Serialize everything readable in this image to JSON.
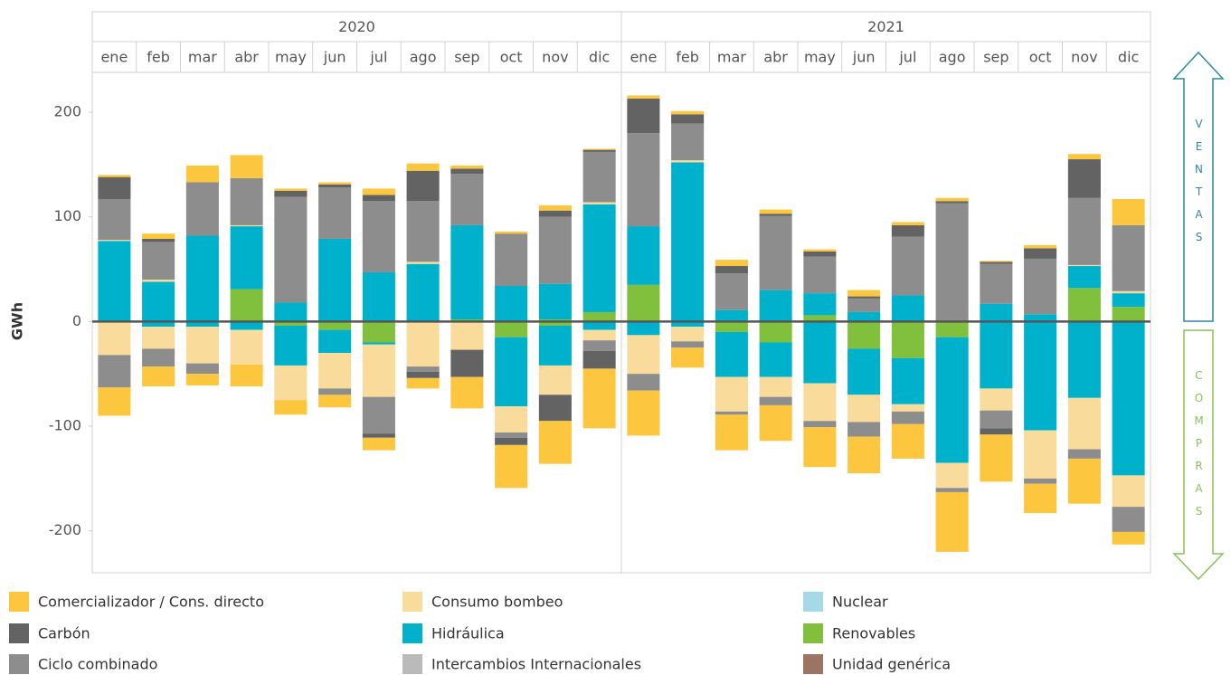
{
  "chart_data": {
    "type": "bar",
    "y_label": "GWh",
    "groups": [
      "2020",
      "2021"
    ],
    "categories": [
      "ene",
      "feb",
      "mar",
      "abr",
      "may",
      "jun",
      "jul",
      "ago",
      "sep",
      "oct",
      "nov",
      "dic",
      "ene",
      "feb",
      "mar",
      "abr",
      "may",
      "jun",
      "jul",
      "ago",
      "sep",
      "oct",
      "nov",
      "dic"
    ],
    "annotations": {
      "ventas": "VENTAS",
      "compras": "COMPRAS"
    },
    "ylim": [
      -240,
      238
    ],
    "yticks": [
      -200,
      -100,
      0,
      100,
      200
    ],
    "series": [
      {
        "name": "Comercializador / Cons. directo",
        "color": "#fcc63f",
        "ventas": [
          2,
          5,
          16,
          22,
          2,
          2,
          6,
          7,
          3,
          2,
          5,
          1,
          3,
          3,
          6,
          4,
          2,
          6,
          3,
          3,
          1,
          3,
          5,
          25
        ],
        "compras": [
          -27,
          -19,
          -11,
          -21,
          -14,
          -12,
          -12,
          -10,
          -30,
          -41,
          -41,
          -57,
          -43,
          -19,
          -34,
          -34,
          -38,
          -35,
          -33,
          -57,
          -45,
          -28,
          -43,
          -12
        ]
      },
      {
        "name": "Carbón",
        "color": "#636363",
        "ventas": [
          21,
          3,
          0,
          0,
          6,
          3,
          6,
          29,
          5,
          0,
          6,
          2,
          33,
          9,
          7,
          2,
          5,
          2,
          11,
          2,
          2,
          10,
          37,
          0
        ],
        "compras": [
          0,
          0,
          0,
          0,
          0,
          0,
          -4,
          -6,
          -26,
          -7,
          -25,
          -17,
          0,
          0,
          0,
          0,
          0,
          0,
          0,
          0,
          -6,
          0,
          0,
          0
        ]
      },
      {
        "name": "Ciclo combinado",
        "color": "#8d8d8d",
        "ventas": [
          39,
          36,
          51,
          45,
          101,
          49,
          68,
          58,
          49,
          50,
          64,
          48,
          89,
          35,
          35,
          71,
          35,
          13,
          56,
          113,
          38,
          53,
          64,
          63
        ],
        "compras": [
          -31,
          -17,
          -10,
          0,
          0,
          -6,
          -35,
          -5,
          0,
          -5,
          0,
          -10,
          -16,
          -6,
          -3,
          -8,
          -6,
          -14,
          -12,
          -4,
          -17,
          -5,
          -9,
          -24
        ]
      },
      {
        "name": "Consumo bombeo",
        "color": "#f9dc9b",
        "ventas": [
          1,
          2,
          0,
          1,
          0,
          0,
          0,
          2,
          0,
          0,
          0,
          2,
          0,
          2,
          0,
          0,
          0,
          0,
          0,
          0,
          0,
          0,
          1,
          2
        ],
        "compras": [
          -32,
          -21,
          -35,
          -33,
          -33,
          -34,
          -50,
          -43,
          -27,
          -25,
          -28,
          -10,
          -37,
          -14,
          -33,
          -19,
          -36,
          -26,
          -7,
          -24,
          -21,
          -46,
          -49,
          -30
        ]
      },
      {
        "name": "Hidráulica",
        "color": "#00b1cc",
        "ventas": [
          77,
          38,
          82,
          60,
          18,
          79,
          47,
          55,
          90,
          34,
          34,
          103,
          56,
          152,
          11,
          30,
          21,
          9,
          25,
          0,
          17,
          7,
          21,
          13
        ],
        "compras": [
          0,
          -5,
          -5,
          -8,
          -38,
          -22,
          -2,
          0,
          0,
          -66,
          -38,
          -8,
          -13,
          -5,
          -43,
          -33,
          -59,
          -44,
          -44,
          -120,
          -64,
          -104,
          -73,
          -147
        ]
      },
      {
        "name": "Intercambios Internacionales",
        "color": "#bababa",
        "ventas": [
          0,
          0,
          0,
          0,
          0,
          0,
          0,
          0,
          0,
          0,
          0,
          0,
          0,
          0,
          0,
          0,
          0,
          0,
          0,
          0,
          0,
          0,
          0,
          0
        ],
        "compras": [
          0,
          0,
          0,
          0,
          0,
          0,
          0,
          0,
          0,
          0,
          0,
          0,
          0,
          0,
          0,
          0,
          0,
          0,
          0,
          0,
          0,
          0,
          0,
          0
        ]
      },
      {
        "name": "Nuclear",
        "color": "#a5d9e6",
        "ventas": [
          0,
          0,
          0,
          0,
          0,
          0,
          0,
          0,
          0,
          0,
          0,
          0,
          0,
          0,
          0,
          0,
          0,
          0,
          0,
          0,
          0,
          0,
          0,
          0
        ],
        "compras": [
          0,
          0,
          0,
          0,
          0,
          0,
          0,
          0,
          0,
          0,
          0,
          0,
          0,
          0,
          0,
          0,
          0,
          0,
          0,
          0,
          0,
          0,
          0,
          0
        ]
      },
      {
        "name": "Renovables",
        "color": "#80c03d",
        "ventas": [
          0,
          0,
          0,
          31,
          0,
          0,
          0,
          0,
          2,
          0,
          2,
          9,
          35,
          0,
          0,
          0,
          6,
          0,
          0,
          0,
          0,
          0,
          32,
          14
        ],
        "compras": [
          0,
          0,
          0,
          0,
          -4,
          -8,
          -20,
          0,
          0,
          -15,
          -4,
          0,
          0,
          0,
          -10,
          -20,
          0,
          -26,
          -35,
          -15,
          0,
          0,
          0,
          0
        ]
      },
      {
        "name": "Unidad genérica",
        "color": "#9b7561",
        "ventas": [
          0,
          0,
          0,
          0,
          0,
          0,
          0,
          0,
          0,
          0,
          0,
          0,
          0,
          0,
          0,
          0,
          0,
          0,
          0,
          0,
          0,
          0,
          0,
          0
        ],
        "compras": [
          0,
          0,
          0,
          0,
          0,
          0,
          0,
          0,
          0,
          0,
          0,
          0,
          0,
          0,
          0,
          0,
          0,
          0,
          0,
          0,
          0,
          0,
          0,
          0
        ]
      }
    ]
  }
}
